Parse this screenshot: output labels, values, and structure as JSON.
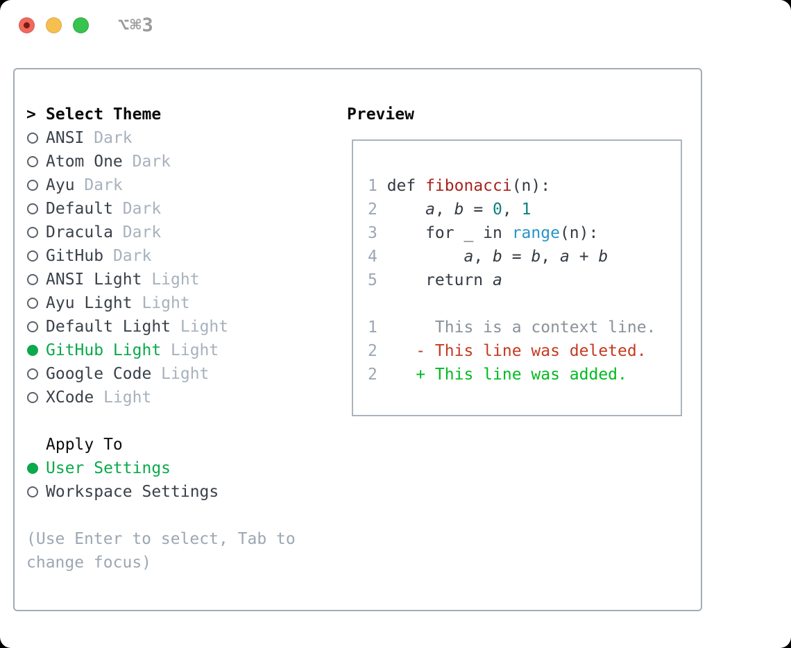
{
  "window": {
    "shortcut": "⌥⌘3"
  },
  "colors": {
    "selected_green": "#0aa94b",
    "added_green": "#00ba20",
    "deleted_red": "#c53a20",
    "function_red": "#a5251c",
    "number_teal": "#0c7f81",
    "builtin_blue": "#2694cb",
    "dim_gray": "#a7b1bd",
    "hint_gray": "#9ca7b3",
    "traffic_red": "#f1695d",
    "traffic_yellow": "#f6c04f",
    "traffic_green": "#38c24e"
  },
  "theme_menu": {
    "cursor": ">",
    "title": "Select Theme",
    "items": [
      {
        "name": "ANSI",
        "tag": "Dark",
        "selected": false
      },
      {
        "name": "Atom One",
        "tag": "Dark",
        "selected": false
      },
      {
        "name": "Ayu",
        "tag": "Dark",
        "selected": false
      },
      {
        "name": "Default",
        "tag": "Dark",
        "selected": false
      },
      {
        "name": "Dracula",
        "tag": "Dark",
        "selected": false
      },
      {
        "name": "GitHub",
        "tag": "Dark",
        "selected": false
      },
      {
        "name": "ANSI Light",
        "tag": "Light",
        "selected": false
      },
      {
        "name": "Ayu Light",
        "tag": "Light",
        "selected": false
      },
      {
        "name": "Default Light",
        "tag": "Light",
        "selected": false
      },
      {
        "name": "GitHub Light",
        "tag": "Light",
        "selected": true
      },
      {
        "name": "Google Code",
        "tag": "Light",
        "selected": false
      },
      {
        "name": "XCode",
        "tag": "Light",
        "selected": false
      }
    ]
  },
  "apply_to": {
    "title": "Apply To",
    "items": [
      {
        "name": "User Settings",
        "selected": true
      },
      {
        "name": "Workspace Settings",
        "selected": false
      }
    ]
  },
  "hint_lines": [
    "(Use Enter to select, Tab to",
    "change focus)"
  ],
  "preview": {
    "title": "Preview",
    "code_lines": [
      {
        "num": "1",
        "tokens": [
          {
            "t": "def "
          },
          {
            "t": "fibonacci",
            "c": "func"
          },
          {
            "t": "(n):"
          }
        ]
      },
      {
        "num": "2",
        "tokens": [
          {
            "t": "    "
          },
          {
            "t": "a",
            "i": true
          },
          {
            "t": ", "
          },
          {
            "t": "b",
            "i": true
          },
          {
            "t": " = "
          },
          {
            "t": "0",
            "c": "num"
          },
          {
            "t": ", "
          },
          {
            "t": "1",
            "c": "num"
          }
        ]
      },
      {
        "num": "3",
        "tokens": [
          {
            "t": "    for _ in "
          },
          {
            "t": "range",
            "c": "builtin"
          },
          {
            "t": "(n):"
          }
        ]
      },
      {
        "num": "4",
        "tokens": [
          {
            "t": "        "
          },
          {
            "t": "a",
            "i": true
          },
          {
            "t": ", "
          },
          {
            "t": "b",
            "i": true
          },
          {
            "t": " = "
          },
          {
            "t": "b",
            "i": true
          },
          {
            "t": ", "
          },
          {
            "t": "a",
            "i": true
          },
          {
            "t": " + "
          },
          {
            "t": "b",
            "i": true
          }
        ]
      },
      {
        "num": "5",
        "tokens": [
          {
            "t": "    return "
          },
          {
            "t": "a",
            "i": true
          }
        ]
      },
      {
        "num": "",
        "tokens": []
      },
      {
        "num": "1",
        "tokens": [
          {
            "t": "     This is a context line.",
            "c": "context"
          }
        ]
      },
      {
        "num": "2",
        "tokens": [
          {
            "t": "   - This line was deleted.",
            "c": "deleted"
          }
        ]
      },
      {
        "num": "2",
        "tokens": [
          {
            "t": "   + This line was added.",
            "c": "added"
          }
        ]
      }
    ]
  }
}
